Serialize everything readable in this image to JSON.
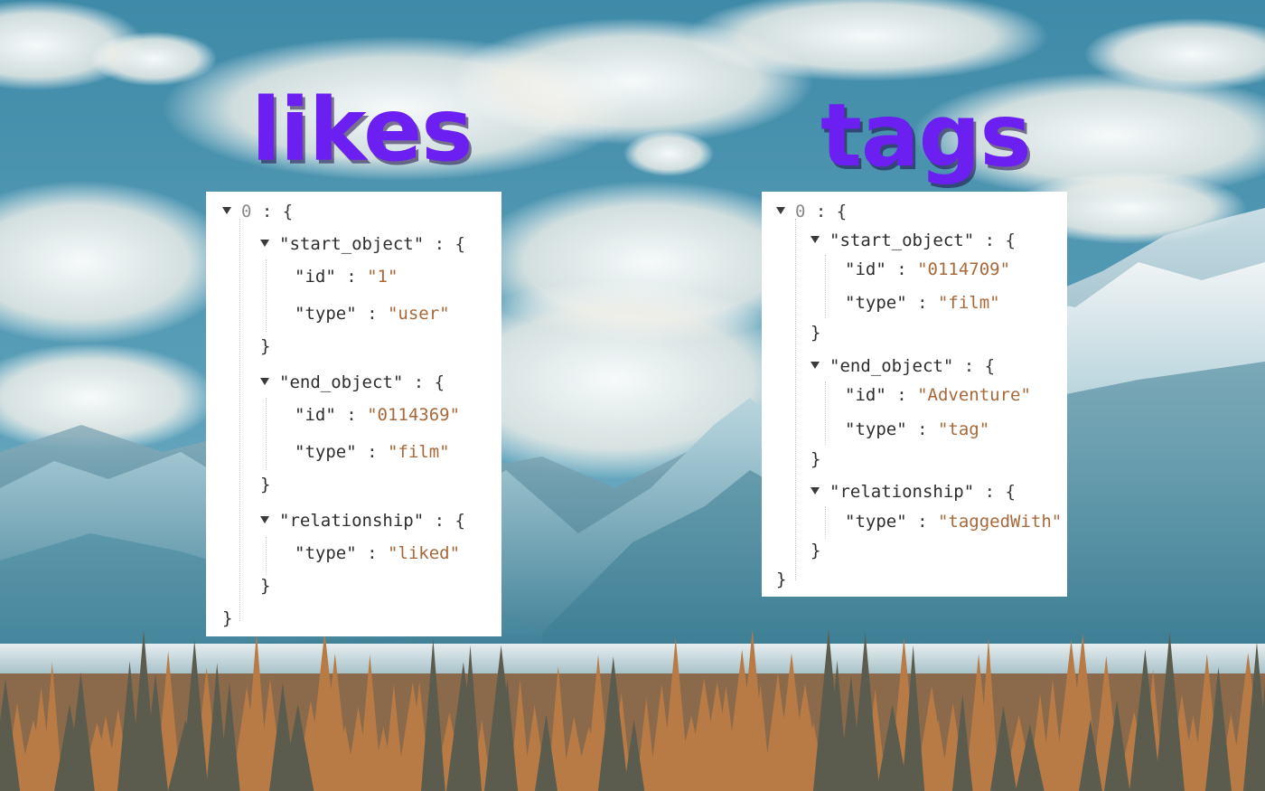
{
  "headings": {
    "likes": "likes",
    "tags": "tags"
  },
  "colors": {
    "heading": "#6b1ff0",
    "string_value": "#a8693a",
    "index": "#8a8a8a"
  },
  "likes": {
    "index": "0",
    "start_key": "\"start_object\"",
    "start_id_key": "\"id\"",
    "start_id_val": "\"1\"",
    "start_type_key": "\"type\"",
    "start_type_val": "\"user\"",
    "end_key": "\"end_object\"",
    "end_id_key": "\"id\"",
    "end_id_val": "\"0114369\"",
    "end_type_key": "\"type\"",
    "end_type_val": "\"film\"",
    "rel_key": "\"relationship\"",
    "rel_type_key": "\"type\"",
    "rel_type_val": "\"liked\""
  },
  "tags": {
    "index": "0",
    "start_key": "\"start_object\"",
    "start_id_key": "\"id\"",
    "start_id_val": "\"0114709\"",
    "start_type_key": "\"type\"",
    "start_type_val": "\"film\"",
    "end_key": "\"end_object\"",
    "end_id_key": "\"id\"",
    "end_id_val": "\"Adventure\"",
    "end_type_key": "\"type\"",
    "end_type_val": "\"tag\"",
    "rel_key": "\"relationship\"",
    "rel_type_key": "\"type\"",
    "rel_type_val": "\"taggedWith\""
  },
  "syntax": {
    "sep": " : ",
    "open": "{",
    "close": "}"
  }
}
